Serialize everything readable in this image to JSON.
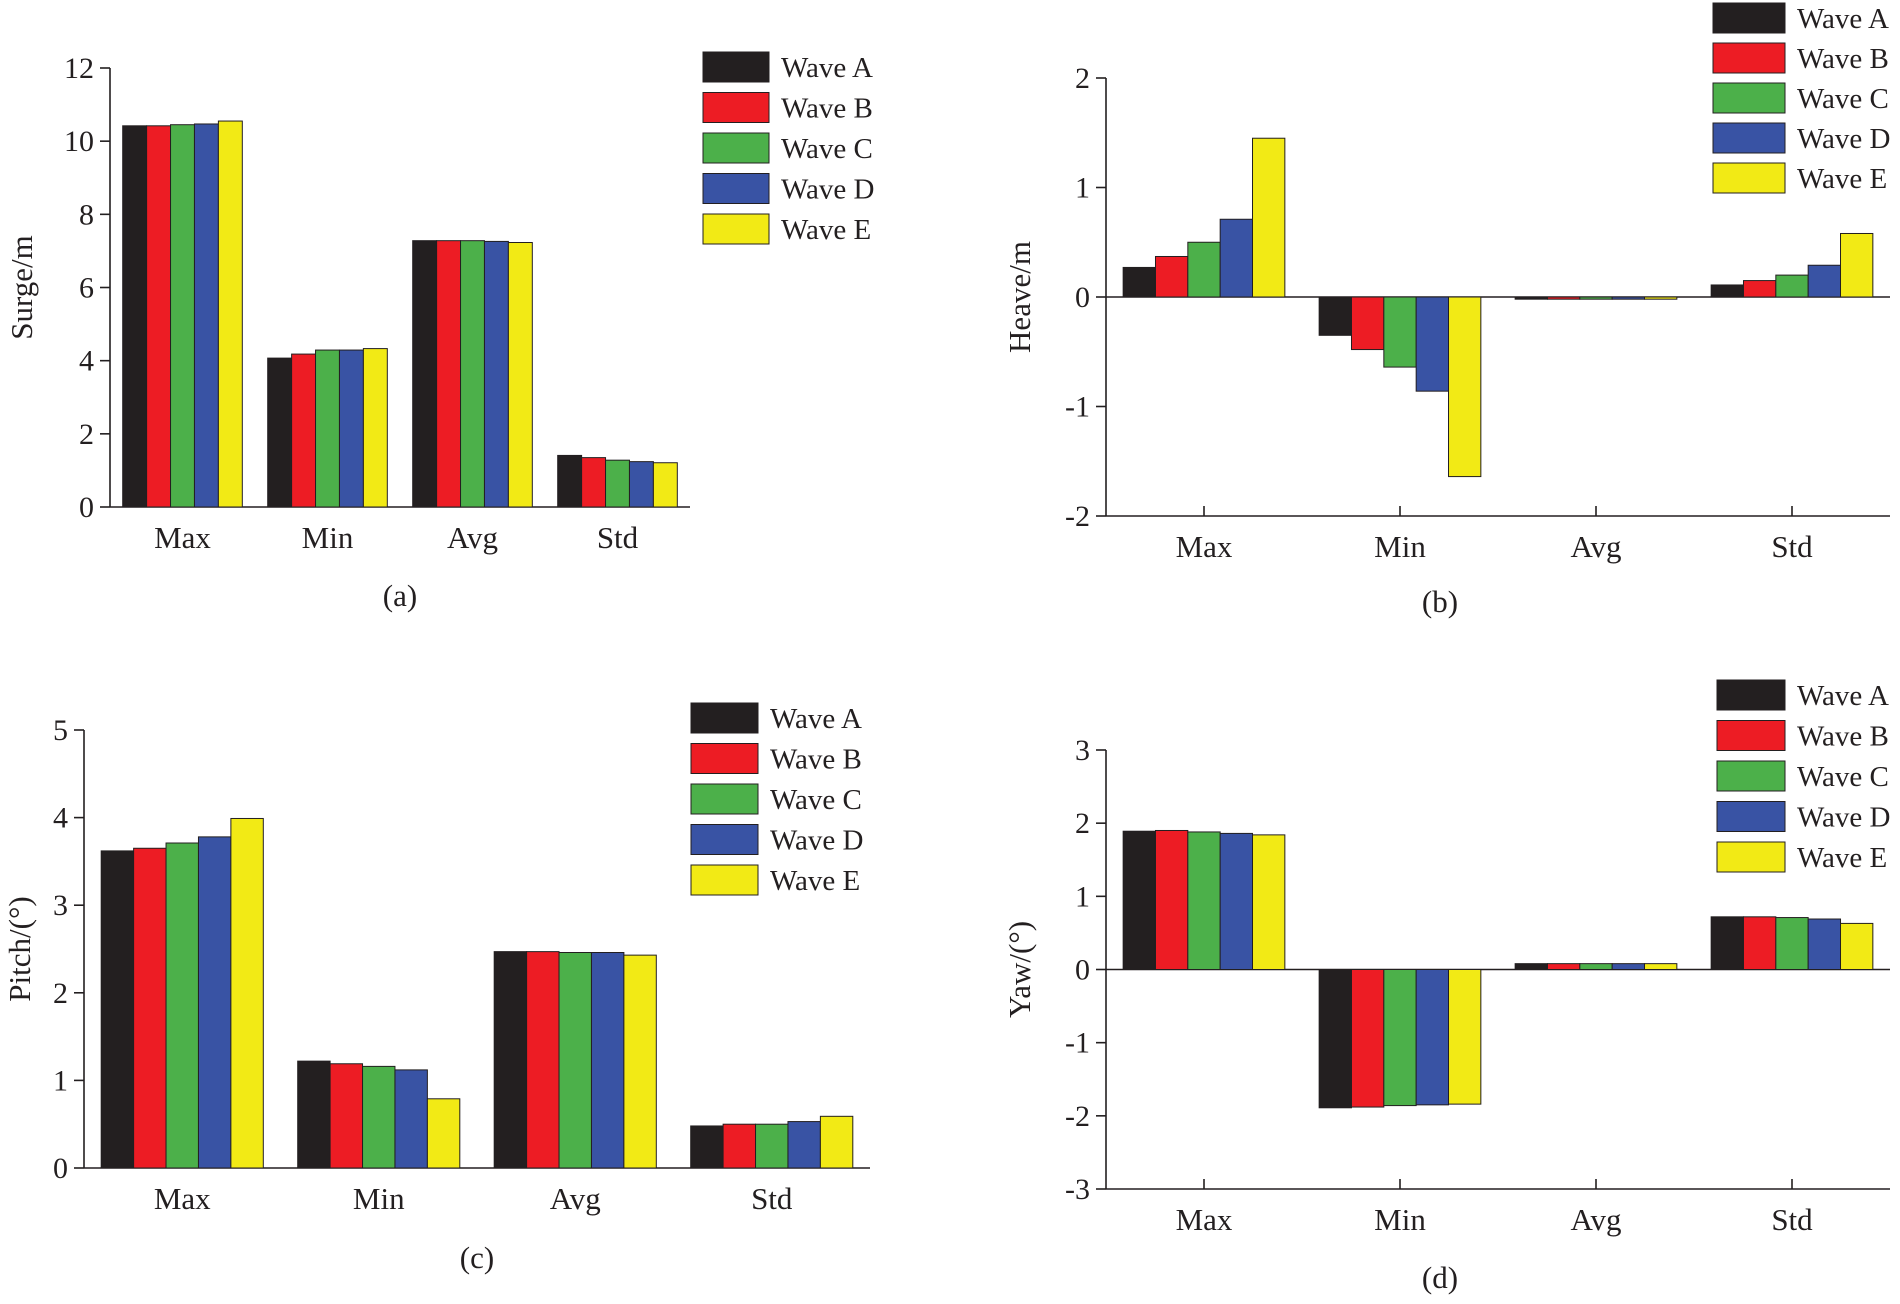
{
  "colors": {
    "Wave A": "#231f20",
    "Wave B": "#ed1c24",
    "Wave C": "#4cb04a",
    "Wave D": "#3953a4",
    "Wave E": "#f2ea15"
  },
  "chart_data": [
    {
      "id": "a",
      "type": "bar",
      "caption": "(a)",
      "title": "",
      "xlabel": "",
      "ylabel": "Surge/m",
      "ylim": [
        0,
        12
      ],
      "yticks": [
        0,
        2,
        4,
        6,
        8,
        10,
        12
      ],
      "ytick_labels": [
        "0",
        "2",
        "4",
        "6",
        "8",
        "10",
        "12"
      ],
      "categories": [
        "Max",
        "Min",
        "Avg",
        "Std"
      ],
      "legend": [
        "Wave A",
        "Wave B",
        "Wave C",
        "Wave D",
        "Wave E"
      ],
      "legend_position": "top-right",
      "series": [
        {
          "name": "Wave A",
          "values": [
            10.42,
            4.07,
            7.28,
            1.41
          ]
        },
        {
          "name": "Wave B",
          "values": [
            10.42,
            4.18,
            7.28,
            1.35
          ]
        },
        {
          "name": "Wave C",
          "values": [
            10.45,
            4.29,
            7.28,
            1.28
          ]
        },
        {
          "name": "Wave D",
          "values": [
            10.47,
            4.29,
            7.26,
            1.24
          ]
        },
        {
          "name": "Wave E",
          "values": [
            10.55,
            4.33,
            7.23,
            1.21
          ]
        }
      ]
    },
    {
      "id": "b",
      "type": "bar",
      "caption": "(b)",
      "title": "",
      "xlabel": "",
      "ylabel": "Heave/m",
      "ylim": [
        -2,
        2
      ],
      "yticks": [
        -2,
        -1,
        0,
        1,
        2
      ],
      "ytick_labels": [
        "-2",
        "-1",
        "0",
        "1",
        "2"
      ],
      "categories": [
        "Max",
        "Min",
        "Avg",
        "Std"
      ],
      "legend": [
        "Wave A",
        "Wave B",
        "Wave C",
        "Wave D",
        "Wave E"
      ],
      "legend_position": "top-right",
      "series": [
        {
          "name": "Wave A",
          "values": [
            0.27,
            -0.35,
            -0.02,
            0.11
          ]
        },
        {
          "name": "Wave B",
          "values": [
            0.37,
            -0.48,
            -0.02,
            0.15
          ]
        },
        {
          "name": "Wave C",
          "values": [
            0.5,
            -0.64,
            -0.02,
            0.2
          ]
        },
        {
          "name": "Wave D",
          "values": [
            0.71,
            -0.86,
            -0.02,
            0.29
          ]
        },
        {
          "name": "Wave E",
          "values": [
            1.45,
            -1.64,
            -0.02,
            0.58
          ]
        }
      ]
    },
    {
      "id": "c",
      "type": "bar",
      "caption": "(c)",
      "title": "",
      "xlabel": "",
      "ylabel": "Pitch/(°)",
      "ylim": [
        0,
        5
      ],
      "yticks": [
        0,
        1,
        2,
        3,
        4,
        5
      ],
      "ytick_labels": [
        "0",
        "1",
        "2",
        "3",
        "4",
        "5"
      ],
      "categories": [
        "Max",
        "Min",
        "Avg",
        "Std"
      ],
      "legend": [
        "Wave A",
        "Wave B",
        "Wave C",
        "Wave D",
        "Wave E"
      ],
      "legend_position": "top-right",
      "series": [
        {
          "name": "Wave A",
          "values": [
            3.62,
            1.22,
            2.47,
            0.48
          ]
        },
        {
          "name": "Wave B",
          "values": [
            3.65,
            1.19,
            2.47,
            0.5
          ]
        },
        {
          "name": "Wave C",
          "values": [
            3.71,
            1.16,
            2.46,
            0.5
          ]
        },
        {
          "name": "Wave D",
          "values": [
            3.78,
            1.12,
            2.46,
            0.53
          ]
        },
        {
          "name": "Wave E",
          "values": [
            3.99,
            0.79,
            2.43,
            0.59
          ]
        }
      ]
    },
    {
      "id": "d",
      "type": "bar",
      "caption": "(d)",
      "title": "",
      "xlabel": "",
      "ylabel": "Yaw/(°)",
      "ylim": [
        -3,
        3
      ],
      "yticks": [
        -3,
        -2,
        -1,
        0,
        1,
        2,
        3
      ],
      "ytick_labels": [
        "-3",
        "-2",
        "-1",
        "0",
        "1",
        "2",
        "3"
      ],
      "categories": [
        "Max",
        "Min",
        "Avg",
        "Std"
      ],
      "legend": [
        "Wave A",
        "Wave B",
        "Wave C",
        "Wave D",
        "Wave E"
      ],
      "legend_position": "top-right",
      "series": [
        {
          "name": "Wave A",
          "values": [
            1.89,
            -1.89,
            0.08,
            0.72
          ]
        },
        {
          "name": "Wave B",
          "values": [
            1.9,
            -1.88,
            0.08,
            0.72
          ]
        },
        {
          "name": "Wave C",
          "values": [
            1.88,
            -1.86,
            0.08,
            0.71
          ]
        },
        {
          "name": "Wave D",
          "values": [
            1.86,
            -1.85,
            0.08,
            0.69
          ]
        },
        {
          "name": "Wave E",
          "values": [
            1.84,
            -1.84,
            0.08,
            0.63
          ]
        }
      ]
    }
  ]
}
